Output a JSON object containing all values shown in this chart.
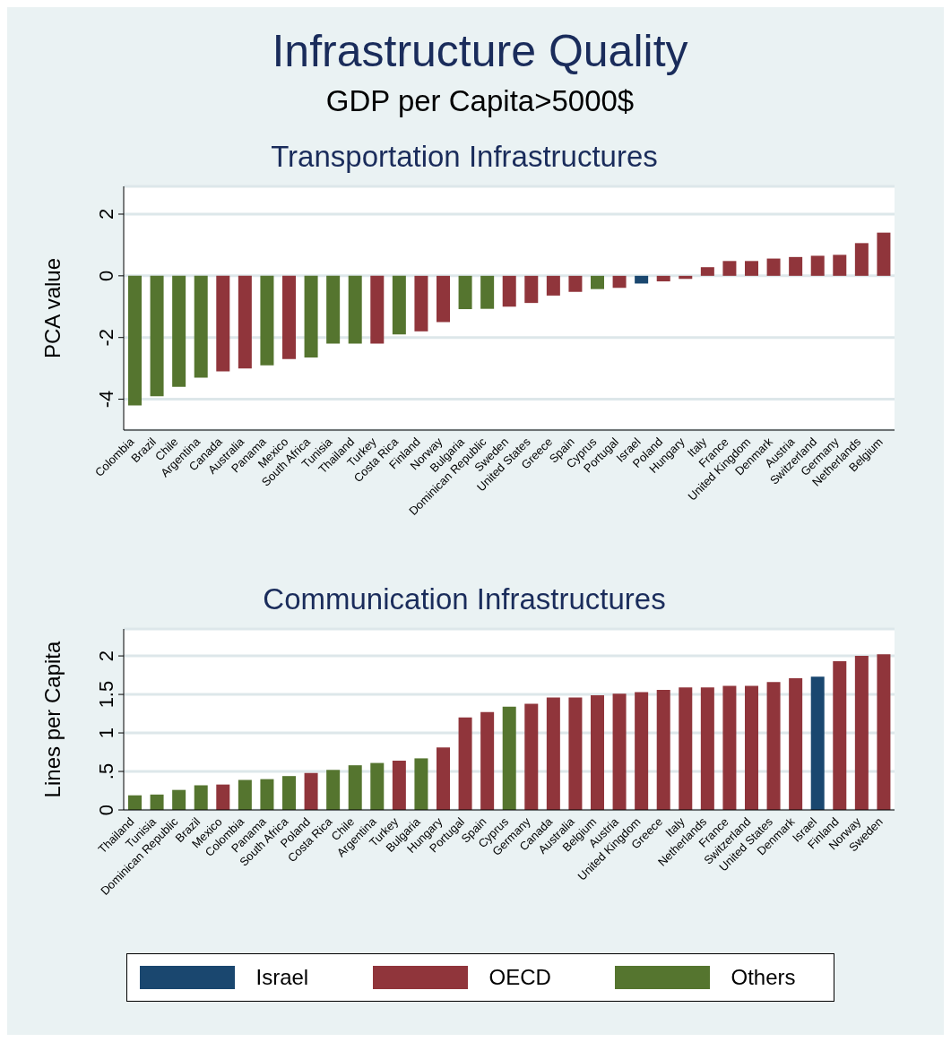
{
  "chart_data": [
    {
      "type": "other",
      "title": "Infrastructure Quality",
      "subtitle": "GDP per Capita>5000$"
    },
    {
      "type": "bar",
      "title": "Transportation Infrastructures",
      "ylabel": "PCA value",
      "stacked": true,
      "grid": "y",
      "ylim": [
        -5,
        2.9
      ],
      "yticks": [
        -4,
        -2,
        0,
        2
      ],
      "categories": [
        "Colombia",
        "Brazil",
        "Chile",
        "Argentina",
        "Canada",
        "Australia",
        "Panama",
        "Mexico",
        "South Africa",
        "Tunisia",
        "Thailand",
        "Turkey",
        "Costa Rica",
        "Finland",
        "Norway",
        "Bulgaria",
        "Dominican Republic",
        "Sweden",
        "United States",
        "Greece",
        "Spain",
        "Cyprus",
        "Portugal",
        "Israel",
        "Poland",
        "Hungary",
        "Italy",
        "France",
        "United Kingdom",
        "Denmark",
        "Austria",
        "Switzerland",
        "Germany",
        "Netherlands",
        "Belgium"
      ],
      "series": [
        {
          "color": "#1a476f",
          "values": [
            null,
            null,
            null,
            null,
            null,
            null,
            null,
            null,
            null,
            null,
            null,
            null,
            null,
            null,
            null,
            null,
            null,
            null,
            null,
            null,
            null,
            null,
            null,
            -0.25,
            null,
            null,
            null,
            null,
            null,
            null,
            null,
            null,
            null,
            null,
            null
          ]
        },
        {
          "color": "#90353b",
          "values": [
            null,
            null,
            null,
            null,
            -3.1,
            -3.0,
            null,
            -2.7,
            null,
            null,
            null,
            -2.2,
            null,
            -1.8,
            -1.5,
            null,
            null,
            -1.0,
            -0.88,
            -0.64,
            -0.52,
            null,
            -0.39,
            null,
            -0.18,
            -0.1,
            0.28,
            0.48,
            0.48,
            0.56,
            0.61,
            0.65,
            0.68,
            1.06,
            1.4
          ]
        },
        {
          "color": "#55752f",
          "values": [
            -4.2,
            -3.9,
            -3.6,
            -3.3,
            null,
            null,
            -2.9,
            null,
            -2.65,
            -2.2,
            -2.2,
            null,
            -1.9,
            null,
            null,
            -1.08,
            -1.07,
            null,
            null,
            null,
            null,
            -0.43,
            null,
            null,
            null,
            null,
            null,
            null,
            null,
            null,
            null,
            null,
            null,
            null,
            null
          ]
        }
      ]
    },
    {
      "type": "bar",
      "title": "Communication Infrastructures",
      "ylabel": "Lines per Capita",
      "stacked": true,
      "grid": "y",
      "legend": "bottom",
      "ylim": [
        0,
        2.35
      ],
      "yticks": [
        0,
        {
          "value": 0.5,
          "label": ".5"
        },
        1,
        1.5,
        2
      ],
      "categories": [
        "Thailand",
        "Tunisia",
        "Dominican Republic",
        "Brazil",
        "Mexico",
        "Colombia",
        "Panama",
        "South Africa",
        "Poland",
        "Costa Rica",
        "Chile",
        "Argentina",
        "Turkey",
        "Bulgaria",
        "Hungary",
        "Portugal",
        "Spain",
        "Cyprus",
        "Germany",
        "Canada",
        "Australia",
        "Belgium",
        "Austria",
        "United Kingdom",
        "Greece",
        "Italy",
        "Netherlands",
        "France",
        "Switzerland",
        "United States",
        "Denmark",
        "Israel",
        "Finland",
        "Norway",
        "Sweden"
      ],
      "series": [
        {
          "name": "Israel",
          "color": "#1a476f",
          "values": [
            null,
            null,
            null,
            null,
            null,
            null,
            null,
            null,
            null,
            null,
            null,
            null,
            null,
            null,
            null,
            null,
            null,
            null,
            null,
            null,
            null,
            null,
            null,
            null,
            null,
            null,
            null,
            null,
            null,
            null,
            null,
            1.73,
            null,
            null,
            null
          ]
        },
        {
          "name": "OECD",
          "color": "#90353b",
          "values": [
            null,
            null,
            null,
            null,
            0.33,
            null,
            null,
            null,
            0.48,
            null,
            null,
            null,
            0.64,
            null,
            0.81,
            1.2,
            1.27,
            null,
            1.38,
            1.46,
            1.46,
            1.49,
            1.51,
            1.53,
            1.56,
            1.59,
            1.59,
            1.61,
            1.61,
            1.66,
            1.71,
            null,
            1.93,
            2.0,
            2.02
          ]
        },
        {
          "name": "Others",
          "color": "#55752f",
          "values": [
            0.19,
            0.2,
            0.26,
            0.32,
            null,
            0.39,
            0.4,
            0.44,
            null,
            0.52,
            0.58,
            0.61,
            null,
            0.67,
            null,
            null,
            null,
            1.34,
            null,
            null,
            null,
            null,
            null,
            null,
            null,
            null,
            null,
            null,
            null,
            null,
            null,
            null,
            null,
            null,
            null
          ]
        }
      ]
    }
  ]
}
